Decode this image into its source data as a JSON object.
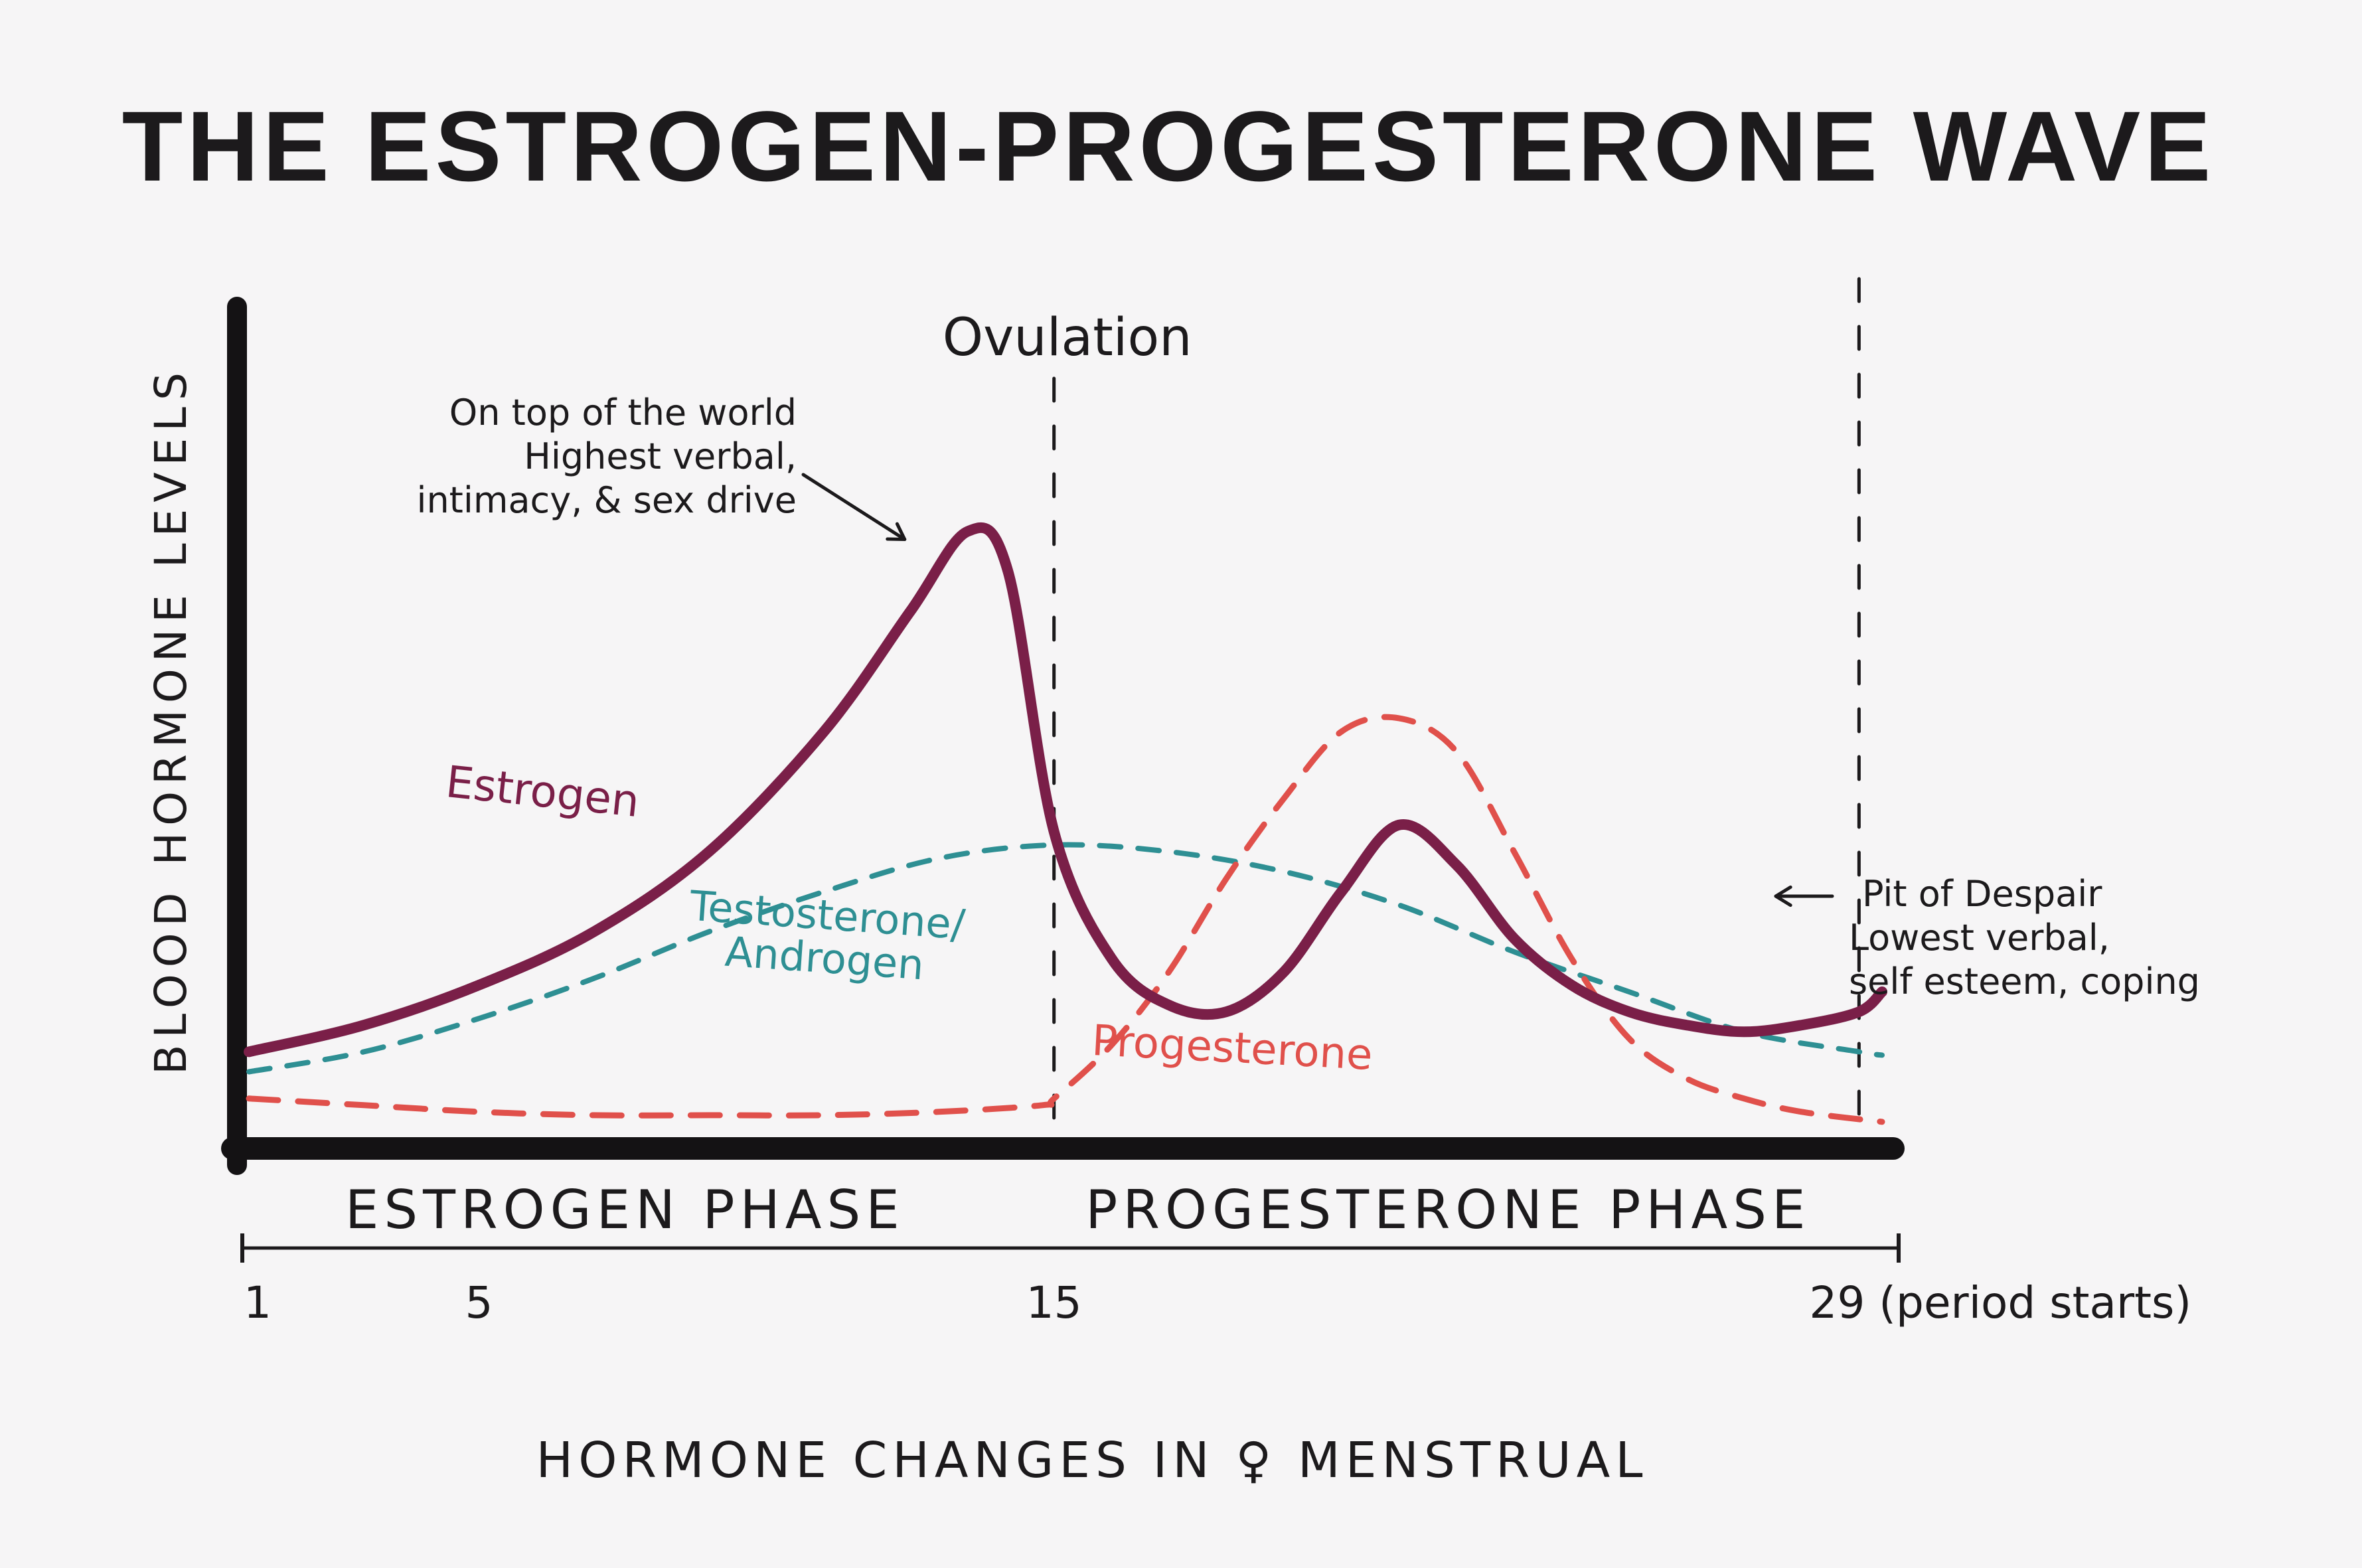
{
  "chart_data": {
    "type": "line",
    "title": "THE ESTROGEN-PROGESTERONE WAVE",
    "xlabel": "HORMONE CHANGES IN ♀ MENSTRUAL",
    "ylabel": "BLOOD HORMONE LEVELS",
    "xlim": [
      1,
      29.4
    ],
    "ylim": [
      0,
      100
    ],
    "x_ticks": [
      {
        "value": 1,
        "label": "1"
      },
      {
        "value": 5,
        "label": "5"
      },
      {
        "value": 15,
        "label": "15"
      },
      {
        "value": 29,
        "label": "29 (period starts)"
      }
    ],
    "phases": [
      {
        "label": "ESTROGEN PHASE",
        "from": 1,
        "to": 15
      },
      {
        "label": "PROGESTERONE PHASE",
        "from": 15,
        "to": 29.4
      }
    ],
    "markers": [
      {
        "x": 15,
        "label": "Ovulation"
      },
      {
        "x": 29
      }
    ],
    "series": [
      {
        "name": "Estrogen",
        "color": "#7a1f48",
        "style": "solid",
        "points": [
          [
            1,
            12
          ],
          [
            3,
            16
          ],
          [
            5,
            22
          ],
          [
            7,
            30
          ],
          [
            9,
            42
          ],
          [
            11,
            60
          ],
          [
            12.5,
            78
          ],
          [
            13.5,
            90
          ],
          [
            14.2,
            84
          ],
          [
            15,
            45
          ],
          [
            16,
            26
          ],
          [
            17,
            19
          ],
          [
            18,
            18
          ],
          [
            19,
            24
          ],
          [
            20,
            36
          ],
          [
            21,
            46
          ],
          [
            22,
            40
          ],
          [
            23,
            29
          ],
          [
            24,
            22
          ],
          [
            25,
            18
          ],
          [
            26,
            16
          ],
          [
            27,
            15
          ],
          [
            28,
            16
          ],
          [
            29,
            18
          ],
          [
            29.4,
            21
          ]
        ]
      },
      {
        "name": "Testosterone/ Androgen",
        "color": "#2e8f93",
        "style": "dashed",
        "points": [
          [
            1,
            9
          ],
          [
            3,
            12
          ],
          [
            5,
            17
          ],
          [
            7,
            23
          ],
          [
            9,
            30
          ],
          [
            11,
            36
          ],
          [
            13,
            41
          ],
          [
            15,
            43
          ],
          [
            17,
            42
          ],
          [
            19,
            39
          ],
          [
            21,
            34
          ],
          [
            23,
            27
          ],
          [
            25,
            21
          ],
          [
            27,
            15
          ],
          [
            29,
            12
          ],
          [
            29.4,
            11.5
          ]
        ]
      },
      {
        "name": "Progesterone",
        "color": "#e0504b",
        "style": "dashed",
        "points": [
          [
            1,
            5
          ],
          [
            3,
            4
          ],
          [
            5,
            3
          ],
          [
            7,
            2.5
          ],
          [
            9,
            2.5
          ],
          [
            11,
            2.5
          ],
          [
            13,
            3
          ],
          [
            14.8,
            4
          ],
          [
            15,
            5
          ],
          [
            16,
            13
          ],
          [
            17,
            24
          ],
          [
            18,
            38
          ],
          [
            19,
            50
          ],
          [
            20,
            60
          ],
          [
            21,
            62
          ],
          [
            22,
            57
          ],
          [
            23,
            42
          ],
          [
            24,
            26
          ],
          [
            25,
            14
          ],
          [
            26,
            8
          ],
          [
            27,
            5
          ],
          [
            28,
            3
          ],
          [
            29.4,
            1.5
          ]
        ]
      }
    ],
    "annotations": [
      {
        "text": "On top of the world\nHighest verbal,\nintimacy, & sex drive",
        "series": "Estrogen",
        "x": 13.5
      },
      {
        "text": "Pit of Despair\nLowest verbal,\nself esteem, coping",
        "series": "Estrogen",
        "x": 29
      }
    ]
  }
}
